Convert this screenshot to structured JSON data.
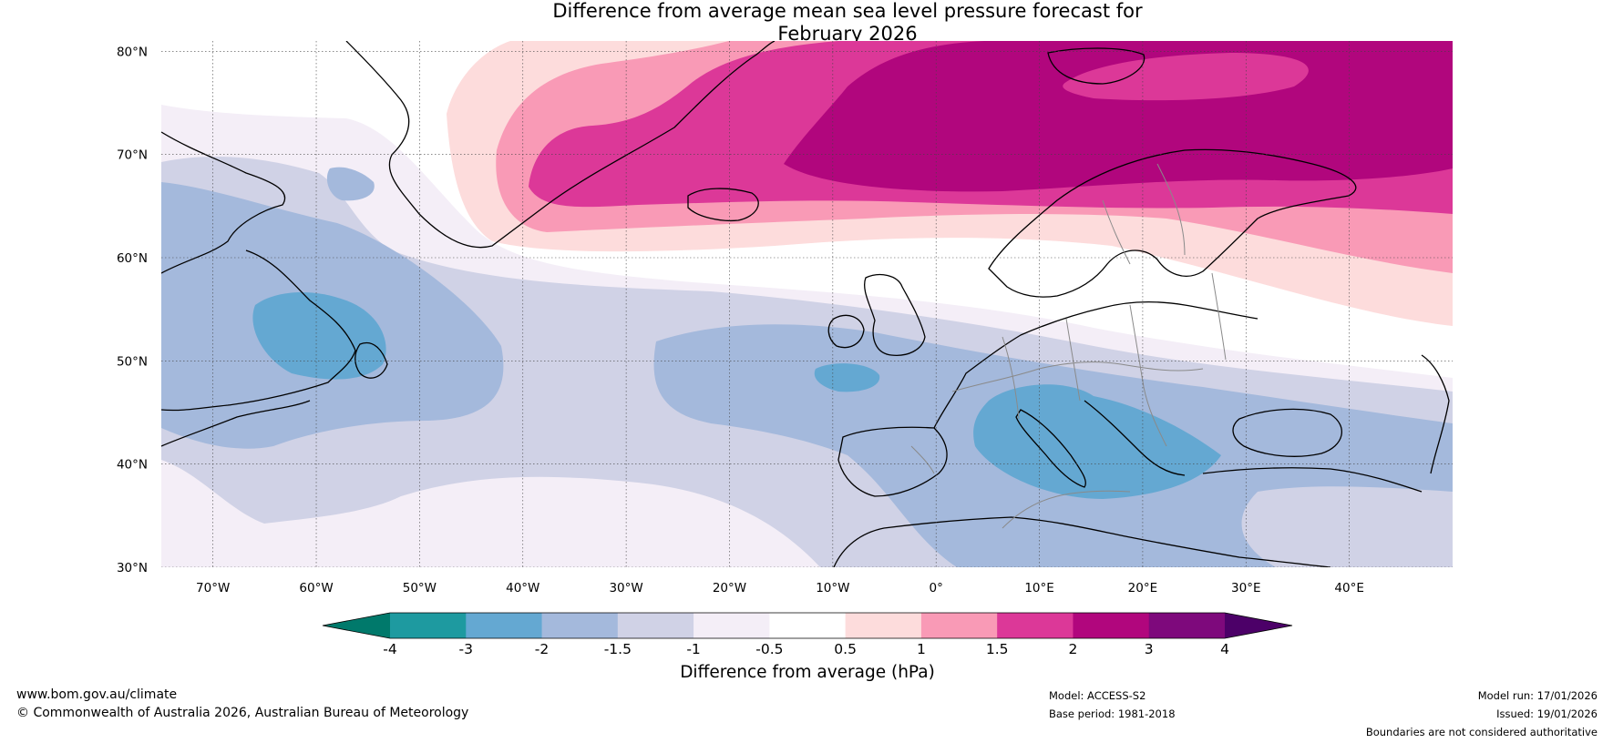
{
  "title": {
    "line1": "Difference from average mean sea level pressure forecast for",
    "line2": "February 2026"
  },
  "map": {
    "lon_range": [
      -75,
      50
    ],
    "lat_range": [
      30,
      81
    ],
    "lat_labels": [
      "30°N",
      "40°N",
      "50°N",
      "60°N",
      "70°N",
      "80°N"
    ],
    "lon_labels": [
      "70°W",
      "60°W",
      "50°W",
      "40°W",
      "30°W",
      "20°W",
      "10°W",
      "0°",
      "10°E",
      "20°E",
      "30°E",
      "40°E"
    ]
  },
  "colorbar": {
    "tick_labels": [
      "-4",
      "-3",
      "-2",
      "-1.5",
      "-1",
      "-0.5",
      "0.5",
      "1",
      "1.5",
      "2",
      "3",
      "4"
    ],
    "colors": [
      "#00796b",
      "#1e9aa0",
      "#64a8d2",
      "#a4b9dc",
      "#d0d2e6",
      "#f4eef7",
      "#ffffff",
      "#fddcdc",
      "#f99ab6",
      "#dc3898",
      "#b1067d",
      "#7e097c",
      "#4c0068"
    ],
    "label": "Difference from average (hPa)"
  },
  "footer": {
    "url": "www.bom.gov.au/climate",
    "copyright": "© Commonwealth of Australia 2026, Australian Bureau of Meteorology",
    "model": "Model: ACCESS-S2",
    "base_period": "Base period: 1981-2018",
    "model_run": "Model run: 17/01/2026",
    "issued": "Issued: 19/01/2026",
    "disclaimer": "Boundaries are not considered authoritative"
  }
}
